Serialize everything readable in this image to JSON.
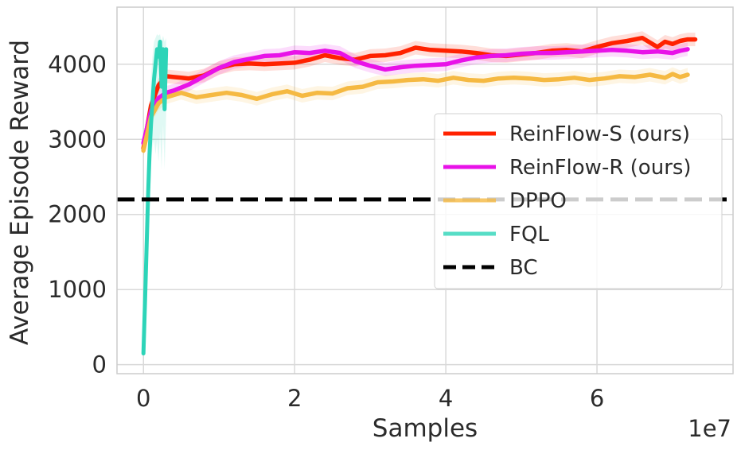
{
  "chart_data": {
    "type": "line",
    "title": "",
    "xlabel": "Samples",
    "ylabel": "Average Episode Reward",
    "x_scale_label": "1e7",
    "xlim": [
      -0.35,
      7.8
    ],
    "ylim": [
      -120,
      4760
    ],
    "grid": true,
    "legend_position": "center-right",
    "x_ticks": [
      {
        "value": 0,
        "label": "0"
      },
      {
        "value": 2,
        "label": "2"
      },
      {
        "value": 4,
        "label": "4"
      },
      {
        "value": 6,
        "label": "6"
      }
    ],
    "y_ticks": [
      {
        "value": 0,
        "label": "0"
      },
      {
        "value": 1000,
        "label": "1000"
      },
      {
        "value": 2000,
        "label": "2000"
      },
      {
        "value": 3000,
        "label": "3000"
      },
      {
        "value": 4000,
        "label": "4000"
      }
    ],
    "series": [
      {
        "name": "ReinFlow-S (ours)",
        "color": "#ff2200",
        "x": [
          0,
          0.1,
          0.2,
          0.3,
          0.4,
          0.5,
          0.6,
          0.8,
          1.0,
          1.2,
          1.4,
          1.6,
          1.8,
          2.0,
          2.2,
          2.4,
          2.6,
          2.8,
          3.0,
          3.2,
          3.4,
          3.6,
          3.8,
          4.0,
          4.2,
          4.4,
          4.6,
          4.8,
          5.0,
          5.2,
          5.4,
          5.6,
          5.8,
          6.0,
          6.2,
          6.4,
          6.6,
          6.8,
          6.9,
          7.0,
          7.1,
          7.2,
          7.3
        ],
        "y": [
          2880,
          3450,
          3720,
          3840,
          3830,
          3820,
          3810,
          3850,
          3950,
          4000,
          4010,
          4000,
          4010,
          4020,
          4060,
          4120,
          4080,
          4060,
          4110,
          4120,
          4150,
          4220,
          4190,
          4180,
          4170,
          4150,
          4120,
          4110,
          4130,
          4150,
          4180,
          4190,
          4170,
          4230,
          4280,
          4310,
          4350,
          4230,
          4300,
          4270,
          4310,
          4330,
          4330
        ]
      },
      {
        "name": "ReinFlow-R (ours)",
        "color": "#e812e8",
        "x": [
          0,
          0.1,
          0.2,
          0.3,
          0.4,
          0.6,
          0.8,
          1.0,
          1.2,
          1.4,
          1.6,
          1.8,
          2.0,
          2.2,
          2.4,
          2.6,
          2.8,
          3.0,
          3.2,
          3.4,
          3.6,
          3.8,
          4.0,
          4.2,
          4.4,
          4.6,
          4.8,
          5.0,
          5.2,
          5.4,
          5.6,
          5.8,
          6.0,
          6.2,
          6.4,
          6.6,
          6.8,
          7.0,
          7.1,
          7.2
        ],
        "y": [
          2950,
          3380,
          3550,
          3620,
          3650,
          3730,
          3840,
          3950,
          4030,
          4070,
          4110,
          4120,
          4160,
          4150,
          4180,
          4150,
          4040,
          3980,
          3930,
          3960,
          3980,
          3990,
          4000,
          4050,
          4090,
          4110,
          4120,
          4140,
          4150,
          4150,
          4160,
          4170,
          4180,
          4190,
          4180,
          4160,
          4170,
          4150,
          4180,
          4200
        ]
      },
      {
        "name": "DPPO",
        "color": "#f5b942",
        "x": [
          0,
          0.1,
          0.2,
          0.3,
          0.5,
          0.7,
          0.9,
          1.1,
          1.3,
          1.5,
          1.7,
          1.9,
          2.1,
          2.3,
          2.5,
          2.7,
          2.9,
          3.1,
          3.3,
          3.5,
          3.7,
          3.9,
          4.1,
          4.3,
          4.5,
          4.7,
          4.9,
          5.1,
          5.3,
          5.5,
          5.7,
          5.9,
          6.1,
          6.3,
          6.5,
          6.7,
          6.9,
          7.0,
          7.1,
          7.2
        ],
        "y": [
          2850,
          3300,
          3480,
          3560,
          3620,
          3560,
          3590,
          3620,
          3590,
          3540,
          3600,
          3640,
          3580,
          3620,
          3610,
          3680,
          3700,
          3760,
          3770,
          3790,
          3800,
          3780,
          3820,
          3790,
          3780,
          3810,
          3820,
          3810,
          3790,
          3800,
          3820,
          3790,
          3810,
          3840,
          3830,
          3860,
          3820,
          3870,
          3830,
          3860
        ]
      },
      {
        "name": "FQL",
        "color": "#2dd4b8",
        "x": [
          0,
          0.02,
          0.04,
          0.06,
          0.08,
          0.1,
          0.12,
          0.14,
          0.16,
          0.18,
          0.2,
          0.22,
          0.24,
          0.26,
          0.28,
          0.3
        ],
        "y": [
          150,
          800,
          1500,
          2200,
          2800,
          3200,
          3500,
          3800,
          4000,
          4200,
          4100,
          4300,
          3700,
          4200,
          3400,
          4200
        ],
        "y_high": [
          400,
          1200,
          2100,
          2700,
          3300,
          3800,
          4100,
          4300,
          4350,
          4400,
          4380,
          4400,
          4300,
          4380,
          4300,
          4350
        ],
        "y_low": [
          100,
          300,
          900,
          1500,
          2100,
          2600,
          2900,
          3000,
          2800,
          3000,
          2700,
          3100,
          2600,
          3200,
          2600,
          3300
        ]
      }
    ],
    "reference_lines": [
      {
        "name": "BC",
        "value": 2200,
        "color": "#000000",
        "style": "dashed"
      }
    ]
  }
}
